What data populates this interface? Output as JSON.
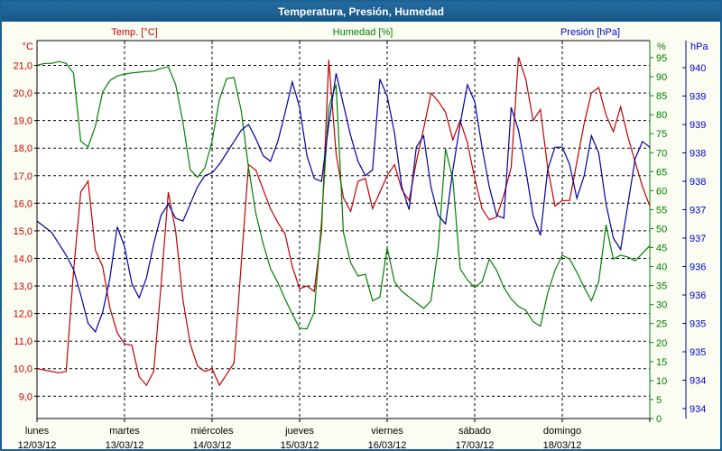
{
  "window": {
    "title": "Temperatura, Presión, Humedad"
  },
  "legend": [
    {
      "label": "Temp. [°C]",
      "color": "#cc0000"
    },
    {
      "label": "Humedad [%]",
      "color": "#008000"
    },
    {
      "label": "Presión [hPa]",
      "color": "#0000cc"
    }
  ],
  "axes_units": {
    "left": "°C",
    "right_percent": "%",
    "right_pressure": "hPa"
  },
  "chart_data": {
    "type": "line",
    "title": "Temperatura, Presión, Humedad",
    "x_unit": "hours since lunes 00:00",
    "x_step_hours": 2,
    "x_range_hours": [
      0,
      168
    ],
    "grid": "dashed black, horizontal per 1°C, vertical per day",
    "days": [
      {
        "name": "lunes",
        "date": "12/03/12"
      },
      {
        "name": "martes",
        "date": "13/03/12"
      },
      {
        "name": "miércoles",
        "date": "14/03/12"
      },
      {
        "name": "jueves",
        "date": "15/03/12"
      },
      {
        "name": "viernes",
        "date": "16/03/12"
      },
      {
        "name": "sábado",
        "date": "17/03/12"
      },
      {
        "name": "domingo",
        "date": "18/03/12"
      }
    ],
    "temp_axis": {
      "unit": "°C",
      "color": "#cc0000",
      "range_shown": [
        9,
        21
      ],
      "tick_labels": [
        "21,0",
        "20,0",
        "19,0",
        "18,0",
        "17,0",
        "16,0",
        "15,0",
        "14,0",
        "13,0",
        "12,0",
        "11,0",
        "10,0",
        "9,0"
      ],
      "tick_values": [
        21,
        20,
        19,
        18,
        17,
        16,
        15,
        14,
        13,
        12,
        11,
        10,
        9
      ]
    },
    "humidity_axis": {
      "unit": "%",
      "color": "#008000",
      "range_shown": [
        0,
        95
      ],
      "tick_values": [
        95,
        90,
        85,
        80,
        75,
        70,
        65,
        60,
        55,
        50,
        45,
        40,
        35,
        30,
        25,
        20,
        15,
        10,
        5,
        0
      ]
    },
    "pressure_axis": {
      "unit": "hPa",
      "color": "#0000cc",
      "range_shown": [
        934,
        940
      ],
      "tick_values": [
        940,
        939.5,
        939,
        938.5,
        938,
        937.5,
        937,
        936.5,
        936,
        935.5,
        935,
        934.5,
        934
      ],
      "tick_labels": [
        "940",
        "939",
        "939",
        "938",
        "938",
        "937",
        "937",
        "936",
        "936",
        "935",
        "935",
        "934",
        "934"
      ]
    },
    "series": [
      {
        "name": "Temp. [°C]",
        "color": "#c00000",
        "axis": "temp",
        "values": [
          10.0,
          9.95,
          9.9,
          9.85,
          9.9,
          13.5,
          16.4,
          16.8,
          14.3,
          13.7,
          12.2,
          11.3,
          10.9,
          10.85,
          9.7,
          9.4,
          9.9,
          13.0,
          16.4,
          15.0,
          12.5,
          10.9,
          10.1,
          9.9,
          10.0,
          9.4,
          9.8,
          10.2,
          13.8,
          17.4,
          17.2,
          16.5,
          15.8,
          15.3,
          14.9,
          13.7,
          12.9,
          13.0,
          12.8,
          15.0,
          21.2,
          17.8,
          16.2,
          15.7,
          16.8,
          16.9,
          15.8,
          16.4,
          17.0,
          17.4,
          16.5,
          16.1,
          17.5,
          18.7,
          20.0,
          19.7,
          19.3,
          18.3,
          19.0,
          18.2,
          16.9,
          15.8,
          15.4,
          15.5,
          16.3,
          17.3,
          21.3,
          20.5,
          19.0,
          19.4,
          17.3,
          15.9,
          16.1,
          16.1,
          17.5,
          18.9,
          20.0,
          20.2,
          19.2,
          18.6,
          19.5,
          18.4,
          17.5,
          16.6,
          15.9
        ]
      },
      {
        "name": "Humedad [%]",
        "color": "#008000",
        "axis": "humidity",
        "values": [
          93,
          93.5,
          93.5,
          94,
          93.5,
          91,
          73,
          71.5,
          77,
          86,
          89,
          90.2,
          90.7,
          91,
          91.2,
          91.4,
          91.5,
          92.2,
          92.6,
          88,
          78,
          65.5,
          63.5,
          66,
          73,
          84,
          89.5,
          89.8,
          81,
          66,
          54,
          46,
          39.5,
          35.8,
          31.5,
          27.5,
          23.8,
          23.6,
          28,
          52,
          82,
          88,
          49,
          41,
          37.5,
          38,
          31,
          32,
          45,
          36,
          33.5,
          32,
          30.5,
          29,
          31,
          45,
          71,
          63,
          39.5,
          36.5,
          34.5,
          36,
          42,
          39,
          34.5,
          31.5,
          29.5,
          28.5,
          25.5,
          24.3,
          33,
          39,
          43,
          42,
          38.5,
          34.5,
          31,
          36,
          51,
          42,
          43,
          42.5,
          41.5,
          43.5,
          45.5
        ]
      },
      {
        "name": "Presión [hPa]",
        "color": "#0000a0",
        "axis": "pressure",
        "values": [
          937.3,
          937.2,
          937.1,
          936.9,
          936.7,
          936.45,
          936.0,
          935.5,
          935.35,
          935.7,
          936.3,
          937.2,
          936.85,
          936.2,
          935.95,
          936.3,
          936.9,
          937.4,
          937.6,
          937.35,
          937.3,
          937.6,
          937.9,
          938.1,
          938.15,
          938.3,
          938.5,
          938.7,
          938.9,
          939.0,
          938.75,
          938.45,
          938.35,
          938.7,
          939.2,
          939.75,
          939.3,
          938.45,
          938.05,
          938.0,
          939.0,
          939.9,
          939.35,
          938.8,
          938.35,
          938.1,
          938.2,
          939.8,
          939.5,
          938.85,
          937.9,
          937.5,
          938.6,
          938.8,
          937.9,
          937.4,
          937.25,
          938.2,
          939.0,
          939.7,
          939.4,
          938.6,
          937.9,
          937.4,
          937.35,
          939.3,
          938.9,
          938.2,
          937.4,
          937.05,
          938.2,
          938.6,
          938.6,
          938.3,
          937.7,
          938.1,
          938.8,
          938.5,
          937.6,
          937.0,
          936.8,
          937.6,
          938.4,
          938.7,
          938.6
        ]
      }
    ]
  }
}
